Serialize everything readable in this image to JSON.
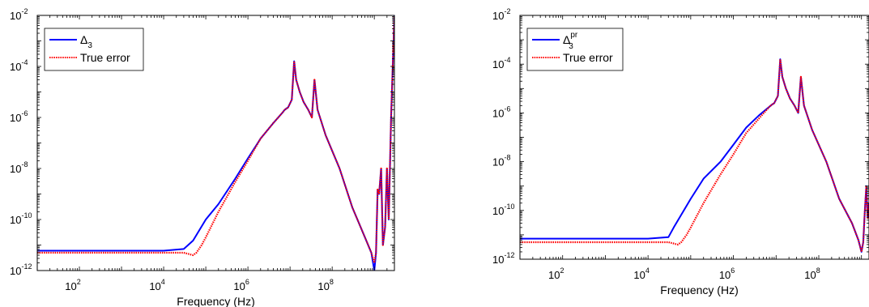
{
  "chart_data": [
    {
      "type": "line",
      "title": "",
      "xlabel": "Frequency (Hz)",
      "ylabel": "",
      "xscale": "log",
      "yscale": "log",
      "xlim": [
        10,
        3000000000
      ],
      "ylim": [
        1e-12,
        0.01
      ],
      "x_ticks": [
        {
          "base": "10",
          "exp": "2",
          "value": 100
        },
        {
          "base": "10",
          "exp": "4",
          "value": 10000
        },
        {
          "base": "10",
          "exp": "6",
          "value": 1000000
        },
        {
          "base": "10",
          "exp": "8",
          "value": 100000000
        }
      ],
      "y_ticks": [
        {
          "base": "10",
          "exp": "-12",
          "value": 1e-12
        },
        {
          "base": "10",
          "exp": "-10",
          "value": 1e-10
        },
        {
          "base": "10",
          "exp": "-8",
          "value": 1e-08
        },
        {
          "base": "10",
          "exp": "-6",
          "value": 1e-06
        },
        {
          "base": "10",
          "exp": "-4",
          "value": 0.0001
        },
        {
          "base": "10",
          "exp": "-2",
          "value": 0.01
        }
      ],
      "grid": false,
      "legend_position": "top-left",
      "series": [
        {
          "name_main": "Δ",
          "name_sub": "3",
          "name_sup": "",
          "color": "#0000ff",
          "style": "solid",
          "x": [
            10,
            10000,
            30000,
            50000,
            100000,
            200000,
            500000,
            1000000,
            2000000,
            4000000,
            6500000,
            7500000,
            9000000,
            11000000,
            12500000,
            14000000,
            17000000,
            21000000,
            27000000,
            33000000,
            38000000,
            45000000,
            70000000,
            150000000,
            300000000,
            600000000,
            850000000,
            1000000000,
            1100000000,
            1200000000,
            1300000000,
            1450000000,
            1600000000,
            1800000000,
            2000000000,
            2200000000,
            2500000000,
            3000000000
          ],
          "y": [
            6e-12,
            6e-12,
            7e-12,
            1.5e-11,
            1e-10,
            4e-10,
            4e-09,
            2.5e-08,
            1.5e-07,
            6e-07,
            1.5e-06,
            2e-06,
            2.5e-06,
            5e-06,
            0.00016,
            3e-05,
            1e-05,
            4e-06,
            2e-06,
            1e-06,
            3e-05,
            2e-06,
            2e-07,
            1e-08,
            3e-10,
            2e-11,
            5e-12,
            1e-12,
            5e-12,
            1.5e-09,
            1e-09,
            1e-08,
            1e-11,
            5e-11,
            1e-08,
            1e-10,
            1e-06,
            0.01
          ]
        },
        {
          "name_main": "True error",
          "name_sub": "",
          "name_sup": "",
          "color": "#ff0000",
          "style": "dotted",
          "x": [
            10,
            10000,
            30000,
            50000,
            60000,
            80000,
            100000,
            200000,
            500000,
            1000000,
            2000000,
            4000000,
            6500000,
            7500000,
            9000000,
            11000000,
            12500000,
            14000000,
            17000000,
            21000000,
            27000000,
            33000000,
            38000000,
            45000000,
            70000000,
            150000000,
            300000000,
            600000000,
            850000000,
            1000000000,
            1100000000,
            1200000000,
            1300000000,
            1450000000,
            1600000000,
            1800000000,
            2000000000,
            2200000000,
            2500000000,
            3000000000
          ],
          "y": [
            5e-12,
            5e-12,
            5e-12,
            4e-12,
            5e-12,
            1e-11,
            2e-11,
            2e-10,
            3e-09,
            2e-08,
            1.5e-07,
            6e-07,
            1.5e-06,
            2e-06,
            2.5e-06,
            5e-06,
            0.00016,
            3e-05,
            1e-05,
            4e-06,
            2e-06,
            1e-06,
            3e-05,
            2e-06,
            2e-07,
            1e-08,
            3e-10,
            2e-11,
            5e-12,
            2e-12,
            5e-12,
            1.5e-09,
            1e-09,
            1e-08,
            1e-11,
            5e-11,
            1e-08,
            1e-10,
            1e-06,
            0.01
          ]
        }
      ]
    },
    {
      "type": "line",
      "title": "",
      "xlabel": "Frequency (Hz)",
      "ylabel": "",
      "xscale": "log",
      "yscale": "log",
      "xlim": [
        10,
        1500000000
      ],
      "ylim": [
        1e-12,
        0.01
      ],
      "x_ticks": [
        {
          "base": "10",
          "exp": "2",
          "value": 100
        },
        {
          "base": "10",
          "exp": "4",
          "value": 10000
        },
        {
          "base": "10",
          "exp": "6",
          "value": 1000000
        },
        {
          "base": "10",
          "exp": "8",
          "value": 100000000
        }
      ],
      "y_ticks": [
        {
          "base": "10",
          "exp": "-12",
          "value": 1e-12
        },
        {
          "base": "10",
          "exp": "-10",
          "value": 1e-10
        },
        {
          "base": "10",
          "exp": "-8",
          "value": 1e-08
        },
        {
          "base": "10",
          "exp": "-6",
          "value": 1e-06
        },
        {
          "base": "10",
          "exp": "-4",
          "value": 0.0001
        },
        {
          "base": "10",
          "exp": "-2",
          "value": 0.01
        }
      ],
      "grid": false,
      "legend_position": "top-left",
      "series": [
        {
          "name_main": "Δ",
          "name_sub": "3",
          "name_sup": "pr",
          "color": "#0000ff",
          "style": "solid",
          "x": [
            10,
            10000,
            30000,
            40000,
            100000,
            200000,
            500000,
            1000000,
            2000000,
            4000000,
            7000000,
            8000000,
            9000000,
            11000000,
            12500000,
            14000000,
            17000000,
            21000000,
            27000000,
            33000000,
            38000000,
            45000000,
            70000000,
            150000000,
            300000000,
            600000000,
            850000000,
            1000000000,
            1100000000,
            1200000000,
            1300000000,
            1400000000,
            1500000000
          ],
          "y": [
            7e-12,
            7e-12,
            8e-12,
            2e-11,
            3e-10,
            2e-09,
            1e-08,
            5e-08,
            2.5e-07,
            8e-07,
            1.8e-06,
            2.2e-06,
            2.5e-06,
            5e-06,
            0.00016,
            3e-05,
            1e-05,
            4e-06,
            2e-06,
            1e-06,
            3e-05,
            2e-06,
            2e-07,
            1e-08,
            3e-10,
            3e-11,
            6e-12,
            2e-12,
            5e-12,
            1e-10,
            1e-09,
            5e-11,
            2e-10
          ]
        },
        {
          "name_main": "True error",
          "name_sub": "",
          "name_sup": "",
          "color": "#ff0000",
          "style": "dotted",
          "x": [
            10,
            10000,
            30000,
            50000,
            60000,
            80000,
            100000,
            200000,
            500000,
            1000000,
            2000000,
            4000000,
            7000000,
            8000000,
            9000000,
            11000000,
            12500000,
            14000000,
            17000000,
            21000000,
            27000000,
            33000000,
            38000000,
            45000000,
            70000000,
            150000000,
            300000000,
            600000000,
            850000000,
            1000000000,
            1100000000,
            1200000000,
            1300000000,
            1400000000,
            1500000000
          ],
          "y": [
            5e-12,
            5e-12,
            5e-12,
            4e-12,
            5e-12,
            1e-11,
            2e-11,
            2e-10,
            3e-09,
            2e-08,
            1.5e-07,
            6e-07,
            1.8e-06,
            2.2e-06,
            2.5e-06,
            5e-06,
            0.00016,
            3e-05,
            1e-05,
            4e-06,
            2e-06,
            1e-06,
            3e-05,
            2e-06,
            2e-07,
            1e-08,
            3e-10,
            3e-11,
            6e-12,
            2e-12,
            5e-12,
            1e-10,
            1e-09,
            5e-11,
            2e-10
          ]
        }
      ]
    }
  ]
}
